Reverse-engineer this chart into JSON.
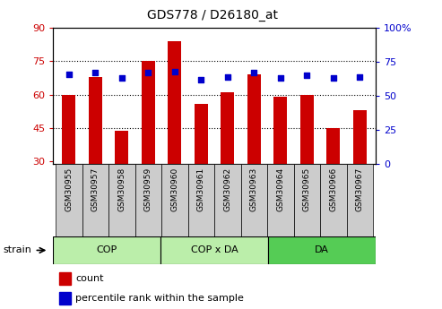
{
  "title": "GDS778 / D26180_at",
  "samples": [
    "GSM30955",
    "GSM30957",
    "GSM30958",
    "GSM30959",
    "GSM30960",
    "GSM30961",
    "GSM30962",
    "GSM30963",
    "GSM30964",
    "GSM30965",
    "GSM30966",
    "GSM30967"
  ],
  "count_values": [
    60,
    68,
    44,
    75,
    84,
    56,
    61,
    69,
    59,
    60,
    45,
    53
  ],
  "percentile_values": [
    66,
    67,
    63,
    67,
    68,
    62,
    64,
    67,
    63,
    65,
    63,
    64
  ],
  "bar_color": "#cc0000",
  "dot_color": "#0000cc",
  "ylim_left": [
    29,
    90
  ],
  "ylim_right": [
    0,
    100
  ],
  "yticks_left": [
    30,
    45,
    60,
    75,
    90
  ],
  "yticks_right": [
    0,
    25,
    50,
    75,
    100
  ],
  "ytick_labels_left": [
    "30",
    "45",
    "60",
    "75",
    "90"
  ],
  "ytick_labels_right": [
    "0",
    "25",
    "50",
    "75",
    "100%"
  ],
  "group_defs": [
    {
      "label": "COP",
      "start": 0,
      "end": 4,
      "color": "#bbeeaa"
    },
    {
      "label": "COP x DA",
      "start": 4,
      "end": 8,
      "color": "#bbeeaa"
    },
    {
      "label": "DA",
      "start": 8,
      "end": 12,
      "color": "#55cc55"
    }
  ],
  "bar_width": 0.5,
  "legend_count_label": "count",
  "legend_pct_label": "percentile rank within the sample",
  "strain_label": "strain",
  "bar_color_label": "#cc0000",
  "dot_color_label": "#0000cc",
  "left_axis_color": "#cc0000",
  "right_axis_color": "#0000cc",
  "tick_bg_color": "#cccccc",
  "plot_bg_color": "#ffffff",
  "figsize": [
    4.93,
    3.45
  ],
  "dpi": 100
}
